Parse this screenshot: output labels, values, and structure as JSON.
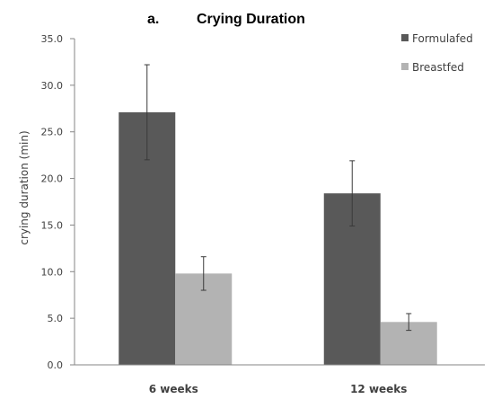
{
  "chart_data": {
    "type": "bar",
    "panel_label": "a.",
    "title": "Crying Duration",
    "xlabel": "",
    "ylabel": "crying duration (min)",
    "ylim": [
      0,
      35
    ],
    "y_ticks": [
      "0.0",
      "5.0",
      "10.0",
      "15.0",
      "20.0",
      "25.0",
      "30.0",
      "35.0"
    ],
    "categories": [
      "6 weeks",
      "12 weeks"
    ],
    "grid": false,
    "legend_position": "top-right",
    "series": [
      {
        "name": "Formulafed",
        "color": "#595959",
        "values": [
          27.1,
          18.4
        ],
        "error": [
          5.1,
          3.5
        ]
      },
      {
        "name": "Breastfed",
        "color": "#b3b3b3",
        "values": [
          9.8,
          4.6
        ],
        "error": [
          1.8,
          0.9
        ]
      }
    ]
  }
}
